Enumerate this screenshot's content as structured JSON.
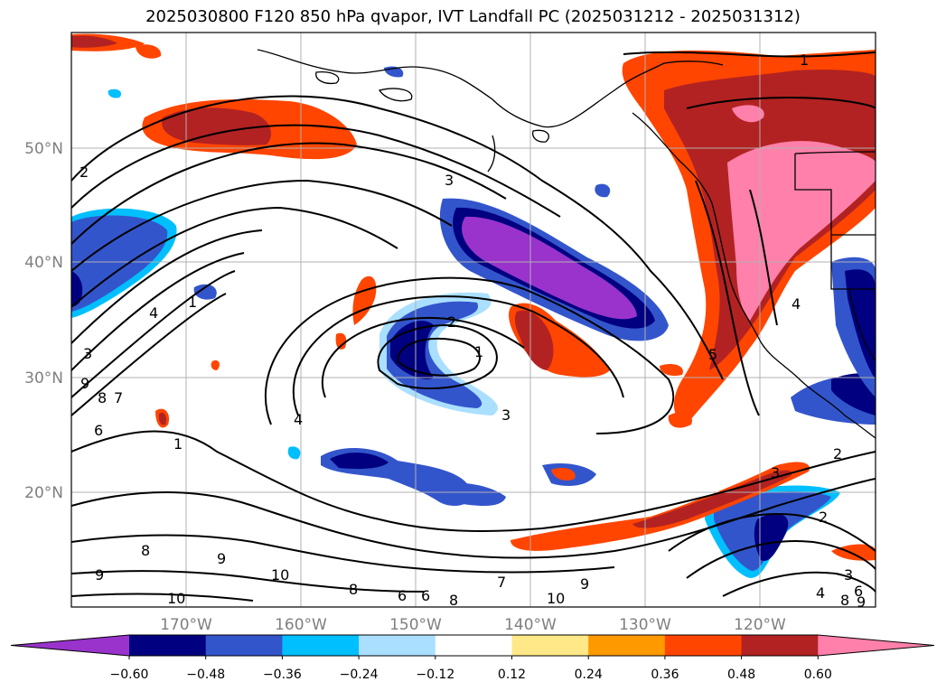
{
  "title": "2025030800 F120 850 hPa qvapor, IVT Landfall PC (2025031212 - 2025031312)",
  "longitude_ticks": [
    "170°W",
    "160°W",
    "150°W",
    "140°W",
    "130°W",
    "120°W"
  ],
  "latitude_ticks": [
    "50°N",
    "40°N",
    "30°N",
    "20°N"
  ],
  "colorbar": {
    "tick_labels": [
      "−0.60",
      "−0.48",
      "−0.36",
      "−0.24",
      "−0.12",
      "0.12",
      "0.24",
      "0.36",
      "0.48",
      "0.60"
    ],
    "colors": [
      "#9933cc",
      "#000080",
      "#3355cc",
      "#00bfff",
      "#aadfff",
      "#ffffff",
      "#ffe888",
      "#ff9900",
      "#ff4500",
      "#b22222",
      "#ff80aa"
    ],
    "extend": "both"
  },
  "contour_labels": [
    "1",
    "2",
    "3",
    "4",
    "5",
    "6",
    "7",
    "8",
    "9",
    "10"
  ]
}
